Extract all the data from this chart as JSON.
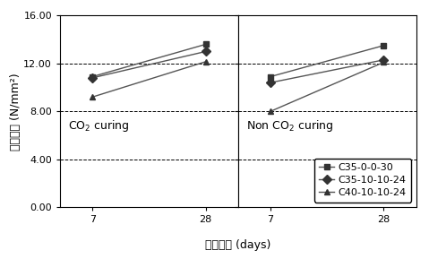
{
  "co2_curing": {
    "label": "CO$_2$ curing",
    "series": [
      {
        "name": "C35-0-0-30",
        "marker": "s",
        "days": [
          7,
          28
        ],
        "values": [
          10.9,
          13.6
        ]
      },
      {
        "name": "C35-10-10-24",
        "marker": "D",
        "days": [
          7,
          28
        ],
        "values": [
          10.8,
          13.0
        ]
      },
      {
        "name": "C40-10-10-24",
        "marker": "^",
        "days": [
          7,
          28
        ],
        "values": [
          9.2,
          12.15
        ]
      }
    ]
  },
  "non_co2_curing": {
    "label": "Non CO$_2$ curing",
    "series": [
      {
        "name": "C35-0-0-30",
        "marker": "s",
        "days": [
          7,
          28
        ],
        "values": [
          10.9,
          13.5
        ]
      },
      {
        "name": "C35-10-10-24",
        "marker": "D",
        "days": [
          7,
          28
        ],
        "values": [
          10.4,
          12.3
        ]
      },
      {
        "name": "C40-10-10-24",
        "marker": "^",
        "days": [
          7,
          28
        ],
        "values": [
          8.0,
          12.1
        ]
      }
    ]
  },
  "ylim": [
    0,
    16
  ],
  "yticks": [
    0.0,
    4.0,
    8.0,
    12.0,
    16.0
  ],
  "dashed_yticks": [
    4.0,
    8.0,
    12.0
  ],
  "xticks": [
    7,
    28
  ],
  "xlabel_korean": "양생시간",
  "xlabel_suffix": " (days)",
  "ylabel_korean": "압욵강도",
  "ylabel_suffix": " (N/mm²)",
  "line_color": "#555555",
  "marker_color": "#333333",
  "legend_labels": [
    "C35-0-0-30",
    "C35-10-10-24",
    "C40-10-10-24"
  ],
  "legend_markers": [
    "s",
    "D",
    "^"
  ],
  "font_size_label": 9,
  "font_size_tick": 8,
  "font_size_legend": 8,
  "font_size_panel": 9
}
